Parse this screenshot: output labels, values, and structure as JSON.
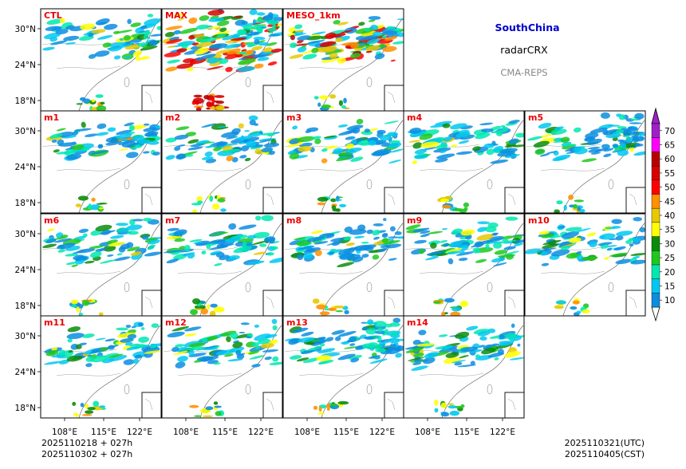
{
  "chart_data": {
    "type": "heatmap",
    "region": "SouthChina",
    "variable": "radarCRX",
    "model": "CMA-REPS",
    "panels": [
      "CTL",
      "MAX",
      "MESO_1km",
      "m1",
      "m2",
      "m3",
      "m4",
      "m5",
      "m6",
      "m7",
      "m8",
      "m9",
      "m10",
      "m11",
      "m12",
      "m13",
      "m14"
    ],
    "y_ticks": [
      "30°N",
      "24°N",
      "18°N"
    ],
    "x_ticks": [
      "108°E",
      "115°E",
      "122°E"
    ],
    "colorbar": {
      "levels": [
        "10",
        "15",
        "20",
        "25",
        "30",
        "35",
        "40",
        "45",
        "50",
        "55",
        "60",
        "65",
        "70"
      ],
      "colors": [
        "#0b8de0",
        "#00c8f0",
        "#00e8b0",
        "#1ec81e",
        "#0a8c0a",
        "#ffff00",
        "#e8c800",
        "#ff9000",
        "#ff0000",
        "#d80000",
        "#b80000",
        "#ff00ff",
        "#a020c8"
      ]
    },
    "init_utc": "2025110218  +  027h",
    "init_cst": "2025110302  +  027h",
    "valid_utc": "2025110321(UTC)",
    "valid_cst": "2025110405(CST)"
  }
}
